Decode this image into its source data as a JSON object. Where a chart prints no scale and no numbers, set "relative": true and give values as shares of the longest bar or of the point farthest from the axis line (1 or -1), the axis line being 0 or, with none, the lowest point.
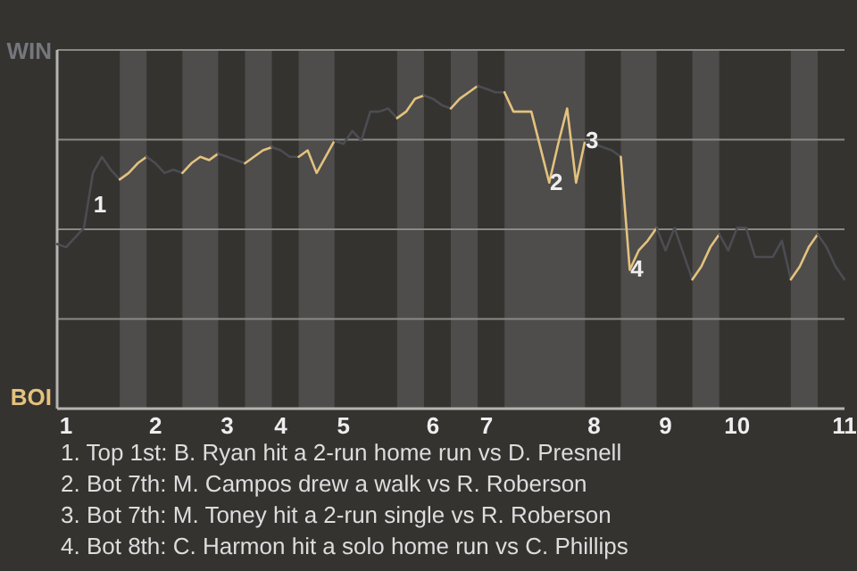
{
  "chart_data": {
    "type": "line",
    "relative": true,
    "categories": [
      null,
      "1",
      null,
      null,
      null,
      null,
      null,
      null,
      null,
      null,
      null,
      "2",
      null,
      null,
      null,
      null,
      null,
      null,
      null,
      "3",
      null,
      null,
      null,
      null,
      null,
      "4",
      null,
      null,
      null,
      null,
      null,
      null,
      "5",
      null,
      null,
      null,
      null,
      null,
      null,
      null,
      null,
      null,
      "6",
      null,
      null,
      null,
      null,
      null,
      "7",
      null,
      null,
      null,
      null,
      null,
      null,
      null,
      null,
      null,
      null,
      null,
      "8",
      null,
      null,
      null,
      null,
      null,
      null,
      null,
      "9",
      null,
      null,
      null,
      null,
      null,
      null,
      null,
      "10",
      null,
      null,
      null,
      null,
      null,
      null,
      null,
      null,
      null,
      null,
      null,
      "11"
    ],
    "series": [
      {
        "color": "#4b4d52",
        "values": [
          0.51,
          0.5,
          0.53,
          0.56,
          0.73,
          0.78,
          0.74,
          0.71,
          null,
          null,
          null,
          null,
          null,
          null,
          null,
          null,
          null,
          null,
          null,
          null,
          null,
          null,
          null,
          null,
          null,
          null,
          null,
          null,
          null,
          null,
          null,
          null,
          null,
          null,
          null,
          null,
          null,
          null,
          null,
          null,
          null,
          null,
          null,
          null,
          null,
          null,
          null,
          null,
          null,
          null,
          null,
          null,
          null,
          null,
          null,
          null,
          null,
          null,
          null,
          null,
          null,
          null,
          null,
          null,
          null,
          null,
          null,
          null,
          null,
          null,
          null,
          null,
          null,
          null,
          null,
          null,
          null,
          null,
          null,
          null,
          null,
          null,
          null,
          null,
          null,
          null,
          null,
          null,
          null
        ]
      },
      {
        "color": "#e3c27e",
        "values": [
          null,
          null,
          null,
          null,
          null,
          null,
          null,
          0.71,
          0.73,
          0.76,
          0.78,
          null,
          null,
          null,
          null,
          null,
          null,
          null,
          null,
          null,
          null,
          null,
          null,
          null,
          null,
          null,
          null,
          null,
          null,
          null,
          null,
          null,
          null,
          null,
          null,
          null,
          null,
          null,
          null,
          null,
          null,
          null,
          null,
          null,
          null,
          null,
          null,
          null,
          null,
          null,
          null,
          null,
          null,
          null,
          null,
          null,
          null,
          null,
          null,
          null,
          null,
          null,
          null,
          null,
          null,
          null,
          null,
          null,
          null,
          null,
          null,
          null,
          null,
          null,
          null,
          null,
          null,
          null,
          null,
          null,
          null,
          null,
          null,
          null,
          null,
          null,
          null,
          null,
          null
        ]
      },
      {
        "color": "#4b4d52",
        "values": [
          null,
          null,
          null,
          null,
          null,
          null,
          null,
          null,
          null,
          null,
          0.78,
          0.76,
          0.73,
          0.74,
          0.73,
          null,
          null,
          null,
          null,
          null,
          null,
          null,
          null,
          null,
          null,
          null,
          null,
          null,
          null,
          null,
          null,
          null,
          null,
          null,
          null,
          null,
          null,
          null,
          null,
          null,
          null,
          null,
          null,
          null,
          null,
          null,
          null,
          null,
          null,
          null,
          null,
          null,
          null,
          null,
          null,
          null,
          null,
          null,
          null,
          null,
          null,
          null,
          null,
          null,
          null,
          null,
          null,
          null,
          null,
          null,
          null,
          null,
          null,
          null,
          null,
          null,
          null,
          null,
          null,
          null,
          null,
          null,
          null,
          null,
          null,
          null,
          null,
          null,
          null
        ]
      },
      {
        "color": "#e3c27e",
        "values": [
          null,
          null,
          null,
          null,
          null,
          null,
          null,
          null,
          null,
          null,
          null,
          null,
          null,
          null,
          0.73,
          0.76,
          0.78,
          0.77,
          0.79,
          null,
          null,
          null,
          null,
          null,
          null,
          null,
          null,
          null,
          null,
          null,
          null,
          null,
          null,
          null,
          null,
          null,
          null,
          null,
          null,
          null,
          null,
          null,
          null,
          null,
          null,
          null,
          null,
          null,
          null,
          null,
          null,
          null,
          null,
          null,
          null,
          null,
          null,
          null,
          null,
          null,
          null,
          null,
          null,
          null,
          null,
          null,
          null,
          null,
          null,
          null,
          null,
          null,
          null,
          null,
          null,
          null,
          null,
          null,
          null,
          null,
          null,
          null,
          null,
          null,
          null,
          null,
          null,
          null,
          null
        ]
      },
      {
        "color": "#4b4d52",
        "values": [
          null,
          null,
          null,
          null,
          null,
          null,
          null,
          null,
          null,
          null,
          null,
          null,
          null,
          null,
          null,
          null,
          null,
          null,
          0.79,
          0.78,
          0.77,
          0.76,
          null,
          null,
          null,
          null,
          null,
          null,
          null,
          null,
          null,
          null,
          null,
          null,
          null,
          null,
          null,
          null,
          null,
          null,
          null,
          null,
          null,
          null,
          null,
          null,
          null,
          null,
          null,
          null,
          null,
          null,
          null,
          null,
          null,
          null,
          null,
          null,
          null,
          null,
          null,
          null,
          null,
          null,
          null,
          null,
          null,
          null,
          null,
          null,
          null,
          null,
          null,
          null,
          null,
          null,
          null,
          null,
          null,
          null,
          null,
          null,
          null,
          null,
          null,
          null,
          null,
          null,
          null
        ]
      },
      {
        "color": "#e3c27e",
        "values": [
          null,
          null,
          null,
          null,
          null,
          null,
          null,
          null,
          null,
          null,
          null,
          null,
          null,
          null,
          null,
          null,
          null,
          null,
          null,
          null,
          null,
          0.76,
          0.78,
          0.8,
          0.81,
          null,
          null,
          null,
          null,
          null,
          null,
          null,
          null,
          null,
          null,
          null,
          null,
          null,
          null,
          null,
          null,
          null,
          null,
          null,
          null,
          null,
          null,
          null,
          null,
          null,
          null,
          null,
          null,
          null,
          null,
          null,
          null,
          null,
          null,
          null,
          null,
          null,
          null,
          null,
          null,
          null,
          null,
          null,
          null,
          null,
          null,
          null,
          null,
          null,
          null,
          null,
          null,
          null,
          null,
          null,
          null,
          null,
          null,
          null,
          null,
          null,
          null,
          null,
          null
        ]
      },
      {
        "color": "#4b4d52",
        "values": [
          null,
          null,
          null,
          null,
          null,
          null,
          null,
          null,
          null,
          null,
          null,
          null,
          null,
          null,
          null,
          null,
          null,
          null,
          null,
          null,
          null,
          null,
          null,
          null,
          0.81,
          0.8,
          0.78,
          0.78,
          null,
          null,
          null,
          null,
          null,
          null,
          null,
          null,
          null,
          null,
          null,
          null,
          null,
          null,
          null,
          null,
          null,
          null,
          null,
          null,
          null,
          null,
          null,
          null,
          null,
          null,
          null,
          null,
          null,
          null,
          null,
          null,
          null,
          null,
          null,
          null,
          null,
          null,
          null,
          null,
          null,
          null,
          null,
          null,
          null,
          null,
          null,
          null,
          null,
          null,
          null,
          null,
          null,
          null,
          null,
          null,
          null,
          null,
          null,
          null,
          null
        ]
      },
      {
        "color": "#e3c27e",
        "values": [
          null,
          null,
          null,
          null,
          null,
          null,
          null,
          null,
          null,
          null,
          null,
          null,
          null,
          null,
          null,
          null,
          null,
          null,
          null,
          null,
          null,
          null,
          null,
          null,
          null,
          null,
          null,
          0.78,
          0.8,
          0.73,
          0.78,
          0.83,
          null,
          null,
          null,
          null,
          null,
          null,
          null,
          null,
          null,
          null,
          null,
          null,
          null,
          null,
          null,
          null,
          null,
          null,
          null,
          null,
          null,
          null,
          null,
          null,
          null,
          null,
          null,
          null,
          null,
          null,
          null,
          null,
          null,
          null,
          null,
          null,
          null,
          null,
          null,
          null,
          null,
          null,
          null,
          null,
          null,
          null,
          null,
          null,
          null,
          null,
          null,
          null,
          null,
          null,
          null,
          null,
          null
        ]
      },
      {
        "color": "#4b4d52",
        "values": [
          null,
          null,
          null,
          null,
          null,
          null,
          null,
          null,
          null,
          null,
          null,
          null,
          null,
          null,
          null,
          null,
          null,
          null,
          null,
          null,
          null,
          null,
          null,
          null,
          null,
          null,
          null,
          null,
          null,
          null,
          null,
          0.83,
          0.82,
          0.86,
          0.83,
          0.92,
          0.92,
          0.93,
          0.9,
          null,
          null,
          null,
          null,
          null,
          null,
          null,
          null,
          null,
          null,
          null,
          null,
          null,
          null,
          null,
          null,
          null,
          null,
          null,
          null,
          null,
          null,
          null,
          null,
          null,
          null,
          null,
          null,
          null,
          null,
          null,
          null,
          null,
          null,
          null,
          null,
          null,
          null,
          null,
          null,
          null,
          null,
          null,
          null,
          null,
          null,
          null,
          null,
          null,
          null
        ]
      },
      {
        "color": "#e3c27e",
        "values": [
          null,
          null,
          null,
          null,
          null,
          null,
          null,
          null,
          null,
          null,
          null,
          null,
          null,
          null,
          null,
          null,
          null,
          null,
          null,
          null,
          null,
          null,
          null,
          null,
          null,
          null,
          null,
          null,
          null,
          null,
          null,
          null,
          null,
          null,
          null,
          null,
          null,
          null,
          0.9,
          0.92,
          0.96,
          0.97,
          null,
          null,
          null,
          null,
          null,
          null,
          null,
          null,
          null,
          null,
          null,
          null,
          null,
          null,
          null,
          null,
          null,
          null,
          null,
          null,
          null,
          null,
          null,
          null,
          null,
          null,
          null,
          null,
          null,
          null,
          null,
          null,
          null,
          null,
          null,
          null,
          null,
          null,
          null,
          null,
          null,
          null,
          null,
          null,
          null,
          null,
          null
        ]
      },
      {
        "color": "#4b4d52",
        "values": [
          null,
          null,
          null,
          null,
          null,
          null,
          null,
          null,
          null,
          null,
          null,
          null,
          null,
          null,
          null,
          null,
          null,
          null,
          null,
          null,
          null,
          null,
          null,
          null,
          null,
          null,
          null,
          null,
          null,
          null,
          null,
          null,
          null,
          null,
          null,
          null,
          null,
          null,
          null,
          null,
          null,
          0.97,
          0.96,
          0.94,
          0.93,
          null,
          null,
          null,
          null,
          null,
          null,
          null,
          null,
          null,
          null,
          null,
          null,
          null,
          null,
          null,
          null,
          null,
          null,
          null,
          null,
          null,
          null,
          null,
          null,
          null,
          null,
          null,
          null,
          null,
          null,
          null,
          null,
          null,
          null,
          null,
          null,
          null,
          null,
          null,
          null,
          null,
          null,
          null,
          null
        ]
      },
      {
        "color": "#e3c27e",
        "values": [
          null,
          null,
          null,
          null,
          null,
          null,
          null,
          null,
          null,
          null,
          null,
          null,
          null,
          null,
          null,
          null,
          null,
          null,
          null,
          null,
          null,
          null,
          null,
          null,
          null,
          null,
          null,
          null,
          null,
          null,
          null,
          null,
          null,
          null,
          null,
          null,
          null,
          null,
          null,
          null,
          null,
          null,
          null,
          null,
          0.93,
          0.96,
          0.98,
          1,
          null,
          null,
          null,
          null,
          null,
          null,
          null,
          null,
          null,
          null,
          null,
          null,
          null,
          null,
          null,
          null,
          null,
          null,
          null,
          null,
          null,
          null,
          null,
          null,
          null,
          null,
          null,
          null,
          null,
          null,
          null,
          null,
          null,
          null,
          null,
          null,
          null,
          null,
          null,
          null,
          null
        ]
      },
      {
        "color": "#4b4d52",
        "values": [
          null,
          null,
          null,
          null,
          null,
          null,
          null,
          null,
          null,
          null,
          null,
          null,
          null,
          null,
          null,
          null,
          null,
          null,
          null,
          null,
          null,
          null,
          null,
          null,
          null,
          null,
          null,
          null,
          null,
          null,
          null,
          null,
          null,
          null,
          null,
          null,
          null,
          null,
          null,
          null,
          null,
          null,
          null,
          null,
          null,
          null,
          null,
          1,
          0.99,
          0.98,
          0.98,
          null,
          null,
          null,
          null,
          null,
          null,
          null,
          null,
          null,
          null,
          null,
          null,
          null,
          null,
          null,
          null,
          null,
          null,
          null,
          null,
          null,
          null,
          null,
          null,
          null,
          null,
          null,
          null,
          null,
          null,
          null,
          null,
          null,
          null,
          null,
          null,
          null,
          null
        ]
      },
      {
        "color": "#e3c27e",
        "values": [
          null,
          null,
          null,
          null,
          null,
          null,
          null,
          null,
          null,
          null,
          null,
          null,
          null,
          null,
          null,
          null,
          null,
          null,
          null,
          null,
          null,
          null,
          null,
          null,
          null,
          null,
          null,
          null,
          null,
          null,
          null,
          null,
          null,
          null,
          null,
          null,
          null,
          null,
          null,
          null,
          null,
          null,
          null,
          null,
          null,
          null,
          null,
          null,
          null,
          null,
          0.98,
          0.92,
          0.92,
          0.92,
          0.81,
          0.7,
          0.82,
          0.93,
          0.7,
          0.83,
          null,
          null,
          null,
          null,
          null,
          null,
          null,
          null,
          null,
          null,
          null,
          null,
          null,
          null,
          null,
          null,
          null,
          null,
          null,
          null,
          null,
          null,
          null,
          null,
          null,
          null,
          null,
          null,
          null
        ]
      },
      {
        "color": "#4b4d52",
        "values": [
          null,
          null,
          null,
          null,
          null,
          null,
          null,
          null,
          null,
          null,
          null,
          null,
          null,
          null,
          null,
          null,
          null,
          null,
          null,
          null,
          null,
          null,
          null,
          null,
          null,
          null,
          null,
          null,
          null,
          null,
          null,
          null,
          null,
          null,
          null,
          null,
          null,
          null,
          null,
          null,
          null,
          null,
          null,
          null,
          null,
          null,
          null,
          null,
          null,
          null,
          null,
          null,
          null,
          null,
          null,
          null,
          null,
          null,
          null,
          0.83,
          0.82,
          0.81,
          0.8,
          0.78,
          null,
          null,
          null,
          null,
          null,
          null,
          null,
          null,
          null,
          null,
          null,
          null,
          null,
          null,
          null,
          null,
          null,
          null,
          null,
          null,
          null,
          null,
          null,
          null,
          null
        ]
      },
      {
        "color": "#e3c27e",
        "values": [
          null,
          null,
          null,
          null,
          null,
          null,
          null,
          null,
          null,
          null,
          null,
          null,
          null,
          null,
          null,
          null,
          null,
          null,
          null,
          null,
          null,
          null,
          null,
          null,
          null,
          null,
          null,
          null,
          null,
          null,
          null,
          null,
          null,
          null,
          null,
          null,
          null,
          null,
          null,
          null,
          null,
          null,
          null,
          null,
          null,
          null,
          null,
          null,
          null,
          null,
          null,
          null,
          null,
          null,
          null,
          null,
          null,
          null,
          null,
          null,
          null,
          null,
          null,
          0.78,
          0.43,
          0.49,
          0.52,
          0.56,
          null,
          null,
          null,
          null,
          null,
          null,
          null,
          null,
          null,
          null,
          null,
          null,
          null,
          null,
          null,
          null,
          null,
          null,
          null,
          null,
          null
        ]
      },
      {
        "color": "#4b4d52",
        "values": [
          null,
          null,
          null,
          null,
          null,
          null,
          null,
          null,
          null,
          null,
          null,
          null,
          null,
          null,
          null,
          null,
          null,
          null,
          null,
          null,
          null,
          null,
          null,
          null,
          null,
          null,
          null,
          null,
          null,
          null,
          null,
          null,
          null,
          null,
          null,
          null,
          null,
          null,
          null,
          null,
          null,
          null,
          null,
          null,
          null,
          null,
          null,
          null,
          null,
          null,
          null,
          null,
          null,
          null,
          null,
          null,
          null,
          null,
          null,
          null,
          null,
          null,
          null,
          null,
          null,
          null,
          null,
          0.56,
          0.49,
          0.56,
          0.48,
          0.4,
          null,
          null,
          null,
          null,
          null,
          null,
          null,
          null,
          null,
          null,
          null,
          null,
          null,
          null,
          null,
          null,
          null
        ]
      },
      {
        "color": "#e3c27e",
        "values": [
          null,
          null,
          null,
          null,
          null,
          null,
          null,
          null,
          null,
          null,
          null,
          null,
          null,
          null,
          null,
          null,
          null,
          null,
          null,
          null,
          null,
          null,
          null,
          null,
          null,
          null,
          null,
          null,
          null,
          null,
          null,
          null,
          null,
          null,
          null,
          null,
          null,
          null,
          null,
          null,
          null,
          null,
          null,
          null,
          null,
          null,
          null,
          null,
          null,
          null,
          null,
          null,
          null,
          null,
          null,
          null,
          null,
          null,
          null,
          null,
          null,
          null,
          null,
          null,
          null,
          null,
          null,
          null,
          null,
          null,
          null,
          0.4,
          0.44,
          0.5,
          0.54,
          null,
          null,
          null,
          null,
          null,
          null,
          null,
          null,
          null,
          null,
          null,
          null,
          null,
          null
        ]
      },
      {
        "color": "#4b4d52",
        "values": [
          null,
          null,
          null,
          null,
          null,
          null,
          null,
          null,
          null,
          null,
          null,
          null,
          null,
          null,
          null,
          null,
          null,
          null,
          null,
          null,
          null,
          null,
          null,
          null,
          null,
          null,
          null,
          null,
          null,
          null,
          null,
          null,
          null,
          null,
          null,
          null,
          null,
          null,
          null,
          null,
          null,
          null,
          null,
          null,
          null,
          null,
          null,
          null,
          null,
          null,
          null,
          null,
          null,
          null,
          null,
          null,
          null,
          null,
          null,
          null,
          null,
          null,
          null,
          null,
          null,
          null,
          null,
          null,
          null,
          null,
          null,
          null,
          null,
          null,
          0.54,
          0.49,
          0.56,
          0.56,
          0.47,
          0.47,
          0.47,
          0.52,
          0.4,
          null,
          null,
          null,
          null,
          null,
          null
        ]
      },
      {
        "color": "#e3c27e",
        "values": [
          null,
          null,
          null,
          null,
          null,
          null,
          null,
          null,
          null,
          null,
          null,
          null,
          null,
          null,
          null,
          null,
          null,
          null,
          null,
          null,
          null,
          null,
          null,
          null,
          null,
          null,
          null,
          null,
          null,
          null,
          null,
          null,
          null,
          null,
          null,
          null,
          null,
          null,
          null,
          null,
          null,
          null,
          null,
          null,
          null,
          null,
          null,
          null,
          null,
          null,
          null,
          null,
          null,
          null,
          null,
          null,
          null,
          null,
          null,
          null,
          null,
          null,
          null,
          null,
          null,
          null,
          null,
          null,
          null,
          null,
          null,
          null,
          null,
          null,
          null,
          null,
          null,
          null,
          null,
          null,
          null,
          null,
          0.4,
          0.44,
          0.5,
          0.54,
          null,
          null,
          null
        ]
      },
      {
        "color": "#4b4d52",
        "values": [
          null,
          null,
          null,
          null,
          null,
          null,
          null,
          null,
          null,
          null,
          null,
          null,
          null,
          null,
          null,
          null,
          null,
          null,
          null,
          null,
          null,
          null,
          null,
          null,
          null,
          null,
          null,
          null,
          null,
          null,
          null,
          null,
          null,
          null,
          null,
          null,
          null,
          null,
          null,
          null,
          null,
          null,
          null,
          null,
          null,
          null,
          null,
          null,
          null,
          null,
          null,
          null,
          null,
          null,
          null,
          null,
          null,
          null,
          null,
          null,
          null,
          null,
          null,
          null,
          null,
          null,
          null,
          null,
          null,
          null,
          null,
          null,
          null,
          null,
          null,
          null,
          null,
          null,
          null,
          null,
          null,
          null,
          null,
          null,
          null,
          0.54,
          0.5,
          0.44,
          0.4
        ]
      }
    ],
    "grid": "y",
    "marker": "none",
    "annotations": [
      "WIN",
      "BOI",
      {
        "text": "1",
        "y": 0.73
      },
      {
        "text": "2",
        "y": 0.7
      },
      {
        "text": "3",
        "y": 0.83
      },
      {
        "text": "4",
        "y": 0.43
      },
      "1. Top 1st: B. Ryan hit a 2-run home run vs D. Presnell",
      "2. Bot 7th: M. Campos drew a walk vs R. Roberson",
      "3. Bot 7th: M. Toney hit a 2-run single vs R. Roberson",
      "4. Bot 8th: C. Harmon hit a solo home run vs C. Phillips"
    ]
  }
}
